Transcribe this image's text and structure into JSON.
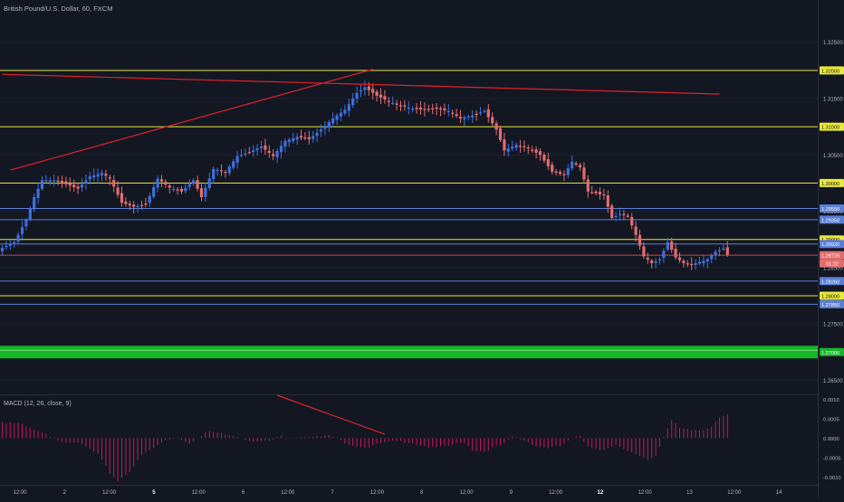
{
  "header": {
    "title": "British Pound/U.S. Dollar, 60, FXCM"
  },
  "macd": {
    "label": "MACD (12, 26, close, 9)"
  },
  "colors": {
    "background": "#131722",
    "bull": "#3d6fe0",
    "bear": "#e26d6d",
    "yellow_line": "#e8e83a",
    "blue_line": "#5a7fd6",
    "red_line": "#e0222a",
    "pink_line": "#c8485a",
    "green_band": "#18b52a",
    "macd_hist": "#c2185b",
    "axis_text": "#b2b5be"
  },
  "chart_data": [
    {
      "type": "candlestick",
      "title": "British Pound/U.S. Dollar, 60, FXCM",
      "ylim": [
        1.2625,
        1.3325
      ],
      "y_ticks": [
        "1.32500",
        "1.31500",
        "1.30500",
        "1.29500",
        "1.28500",
        "1.27500",
        "1.26500"
      ],
      "x_ticks": [
        "12:00",
        "2",
        "12:00",
        "5",
        "12:00",
        "6",
        "12:00",
        "7",
        "12:00",
        "8",
        "12:00",
        "9",
        "12:00",
        "12",
        "12:00",
        "13",
        "12:00",
        "14"
      ],
      "x_ticks_bold": [
        "5",
        "12"
      ],
      "horizontal_levels": [
        {
          "value": 1.32,
          "label": "1.32000",
          "style": "yellow"
        },
        {
          "value": 1.31,
          "label": "1.31000",
          "style": "yellow"
        },
        {
          "value": 1.3,
          "label": "1.30000",
          "style": "yellow"
        },
        {
          "value": 1.2955,
          "label": "1.29550",
          "style": "blue"
        },
        {
          "value": 1.2935,
          "label": "1.29350",
          "style": "blue"
        },
        {
          "value": 1.29,
          "label": "1.29000",
          "style": "yellow"
        },
        {
          "value": 1.2892,
          "label": "1.28920",
          "style": "blue"
        },
        {
          "value": 1.2872,
          "label": "1.28726",
          "style": "pink"
        },
        {
          "value": 1.2826,
          "label": "1.28260",
          "style": "blue"
        },
        {
          "value": 1.28,
          "label": "1.28000",
          "style": "yellow"
        },
        {
          "value": 1.2785,
          "label": "1.27850",
          "style": "blue"
        },
        {
          "value": 1.27,
          "label": "1.27000",
          "style": "green"
        }
      ],
      "countdown_label": "51:22",
      "trendlines": [
        {
          "from": [
            2,
            1.3023
          ],
          "to": [
            93,
            1.3202
          ]
        },
        {
          "from": [
            0,
            1.3193
          ],
          "to": [
            180,
            1.3158
          ]
        }
      ],
      "close_path": [
        [
          0,
          1.2885
        ],
        [
          3,
          1.2895
        ],
        [
          6,
          1.2935
        ],
        [
          8,
          1.2975
        ],
        [
          10,
          1.3005
        ],
        [
          13,
          1.3005
        ],
        [
          16,
          1.2998
        ],
        [
          19,
          1.299
        ],
        [
          22,
          1.3012
        ],
        [
          25,
          1.3018
        ],
        [
          27,
          1.3008
        ],
        [
          30,
          1.2965
        ],
        [
          33,
          1.2958
        ],
        [
          36,
          1.2962
        ],
        [
          39,
          1.3008
        ],
        [
          42,
          1.2992
        ],
        [
          45,
          1.2985
        ],
        [
          48,
          1.3005
        ],
        [
          50,
          1.2975
        ],
        [
          53,
          1.3025
        ],
        [
          56,
          1.302
        ],
        [
          59,
          1.3048
        ],
        [
          62,
          1.3055
        ],
        [
          65,
          1.3065
        ],
        [
          68,
          1.3048
        ],
        [
          71,
          1.3075
        ],
        [
          74,
          1.3082
        ],
        [
          77,
          1.3078
        ],
        [
          80,
          1.3095
        ],
        [
          83,
          1.3115
        ],
        [
          86,
          1.313
        ],
        [
          89,
          1.316
        ],
        [
          91,
          1.317
        ],
        [
          94,
          1.3155
        ],
        [
          97,
          1.3145
        ],
        [
          100,
          1.3138
        ],
        [
          103,
          1.3132
        ],
        [
          106,
          1.313
        ],
        [
          109,
          1.3132
        ],
        [
          112,
          1.3128
        ],
        [
          115,
          1.3115
        ],
        [
          118,
          1.312
        ],
        [
          121,
          1.3128
        ],
        [
          124,
          1.3095
        ],
        [
          126,
          1.3058
        ],
        [
          129,
          1.3068
        ],
        [
          132,
          1.3062
        ],
        [
          135,
          1.305
        ],
        [
          138,
          1.302
        ],
        [
          141,
          1.3015
        ],
        [
          143,
          1.3038
        ],
        [
          145,
          1.3028
        ],
        [
          147,
          1.2985
        ],
        [
          149,
          1.2982
        ],
        [
          151,
          1.2978
        ],
        [
          153,
          1.2938
        ],
        [
          155,
          1.2945
        ],
        [
          157,
          1.2942
        ],
        [
          159,
          1.2908
        ],
        [
          161,
          1.287
        ],
        [
          163,
          1.2858
        ],
        [
          165,
          1.2865
        ],
        [
          167,
          1.2895
        ],
        [
          169,
          1.2868
        ],
        [
          171,
          1.2858
        ],
        [
          173,
          1.2856
        ],
        [
          175,
          1.286
        ],
        [
          177,
          1.2865
        ],
        [
          179,
          1.2878
        ],
        [
          181,
          1.2884
        ],
        [
          182,
          1.2873
        ]
      ]
    },
    {
      "type": "bar",
      "title": "MACD (12, 26, close, 9)",
      "ylim": [
        -0.0012,
        0.0011
      ],
      "y_ticks": [
        "0.0010",
        "0.0005",
        "0.0000",
        "-0.0005",
        "-0.0010"
      ],
      "trendline": {
        "from": [
          69,
          0.0011
        ],
        "to": [
          96,
          0.0001
        ]
      },
      "histogram_path": [
        [
          0,
          0.00042
        ],
        [
          4,
          0.00038
        ],
        [
          8,
          0.0002
        ],
        [
          12,
          5e-05
        ],
        [
          15,
          -8e-05
        ],
        [
          18,
          -0.0001
        ],
        [
          21,
          -0.00022
        ],
        [
          24,
          -0.00042
        ],
        [
          27,
          -0.0009
        ],
        [
          29,
          -0.0011
        ],
        [
          32,
          -0.00085
        ],
        [
          35,
          -0.00045
        ],
        [
          38,
          -0.00025
        ],
        [
          41,
          -5e-05
        ],
        [
          44,
          2e-05
        ],
        [
          47,
          -0.00012
        ],
        [
          50,
          5e-05
        ],
        [
          52,
          0.00018
        ],
        [
          55,
          0.00012
        ],
        [
          58,
          8e-05
        ],
        [
          61,
          -2e-05
        ],
        [
          64,
          -0.0001
        ],
        [
          67,
          -8e-05
        ],
        [
          70,
          5e-05
        ],
        [
          73,
          2e-05
        ],
        [
          76,
          4e-05
        ],
        [
          79,
          3e-05
        ],
        [
          82,
          6e-05
        ],
        [
          85,
          -8e-05
        ],
        [
          88,
          -0.00018
        ],
        [
          90,
          -0.00024
        ],
        [
          93,
          -0.0002
        ],
        [
          96,
          -0.00012
        ],
        [
          99,
          -8e-05
        ],
        [
          102,
          -0.0001
        ],
        [
          105,
          -0.00018
        ],
        [
          108,
          -0.00025
        ],
        [
          111,
          -0.00022
        ],
        [
          114,
          -0.00015
        ],
        [
          116,
          -0.0001
        ],
        [
          118,
          -0.0003
        ],
        [
          121,
          -0.00035
        ],
        [
          123,
          -0.00025
        ],
        [
          126,
          -0.00015
        ],
        [
          128,
          3e-05
        ],
        [
          131,
          -5e-05
        ],
        [
          134,
          -0.0002
        ],
        [
          137,
          -0.00025
        ],
        [
          140,
          -0.0002
        ],
        [
          143,
          -2e-05
        ],
        [
          145,
          5e-05
        ],
        [
          147,
          -0.0002
        ],
        [
          150,
          -0.0003
        ],
        [
          152,
          -0.00025
        ],
        [
          154,
          -0.0002
        ],
        [
          157,
          -0.00035
        ],
        [
          160,
          -0.00045
        ],
        [
          162,
          -0.00055
        ],
        [
          164,
          -0.00045
        ],
        [
          166,
          5e-05
        ],
        [
          168,
          0.00045
        ],
        [
          170,
          0.00025
        ],
        [
          173,
          0.0002
        ],
        [
          176,
          0.0002
        ],
        [
          178,
          0.00032
        ],
        [
          180,
          0.00055
        ],
        [
          182,
          0.0006
        ]
      ]
    }
  ]
}
